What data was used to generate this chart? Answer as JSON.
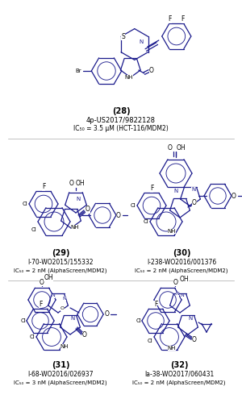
{
  "background": "#ffffff",
  "text_color": "#000000",
  "blue": "#1a1a8c",
  "fig_width": 3.0,
  "fig_height": 5.0,
  "dpi": 100,
  "compounds": {
    "28": {
      "label": "(28)",
      "ref": "4p-US2017/9822128",
      "act": "IC50 = 3.5 μM (HCT-116/MDM2)"
    },
    "29": {
      "label": "(29)",
      "ref": "I-70-WO2015/155332",
      "act": "IC50 = 2 nM (AlphaScreen/MDM2)"
    },
    "30": {
      "label": "(30)",
      "ref": "I-238-WO2016/001376",
      "act": "IC50 = 2 nM (AlphaScreen/MDM2)"
    },
    "31": {
      "label": "(31)",
      "ref": "I-68-WO2016/026937",
      "act": "IC50 = 3 nM (AlphaScreen/MDM2)"
    },
    "32": {
      "label": "(32)",
      "ref": "Ia-38-WO2017/060431",
      "act": "IC50 = 2 nM (AlphaScreen/MDM2)"
    }
  }
}
